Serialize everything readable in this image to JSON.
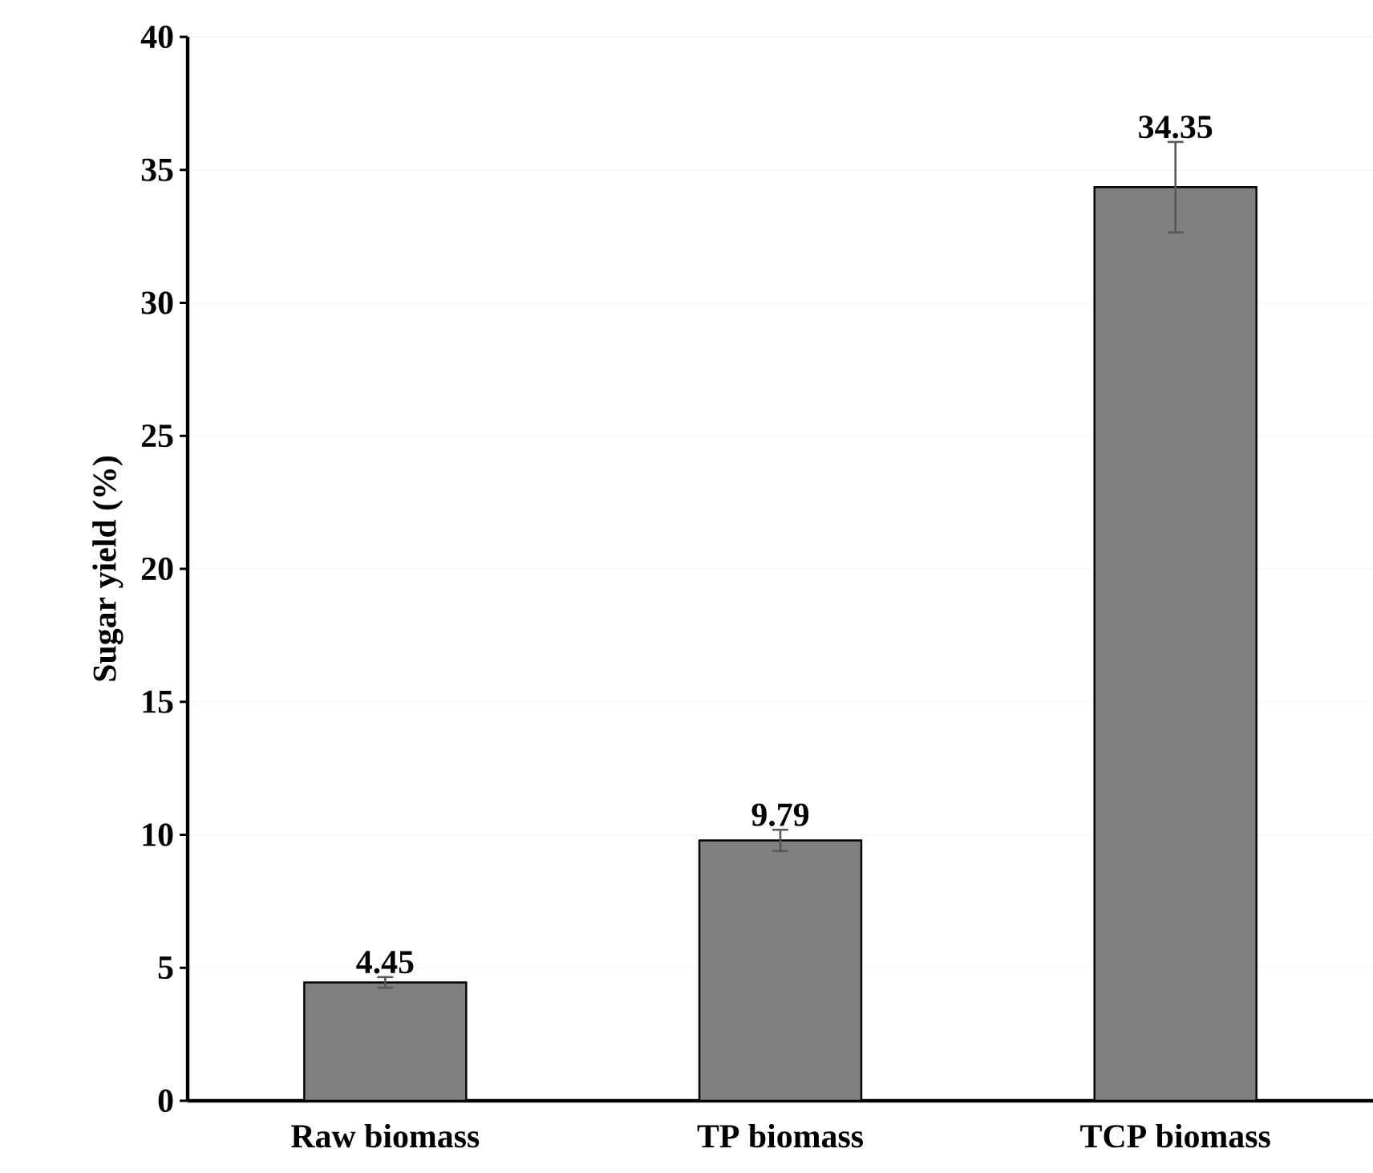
{
  "chart_data": {
    "type": "bar",
    "ylabel": "Sugar yield (%)",
    "categories": [
      "Raw biomass",
      "TP biomass",
      "TCP biomass"
    ],
    "values": [
      4.45,
      9.79,
      34.35
    ],
    "errors": [
      0.2,
      0.4,
      1.7
    ],
    "color": "#808080",
    "ylim": [
      0,
      40
    ],
    "yticks": [
      0,
      5,
      10,
      15,
      20,
      25,
      30,
      35,
      40
    ],
    "value_labels": [
      "4.45",
      "9.79",
      "34.35"
    ],
    "grid": "y"
  }
}
